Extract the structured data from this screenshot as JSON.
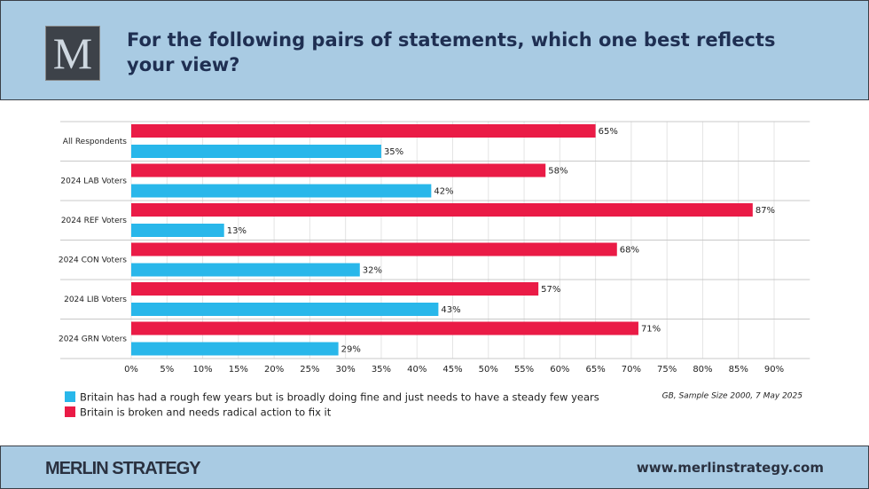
{
  "header": {
    "logo": "M",
    "title": "For the following pairs of statements, which one best reflects your view?"
  },
  "chart_data": {
    "type": "bar",
    "orientation": "horizontal",
    "categories": [
      "All Respondents",
      "2024 LAB Voters",
      "2024 REF Voters",
      "2024 CON Voters",
      "2024 LIB Voters",
      "2024 GRN Voters"
    ],
    "series": [
      {
        "name": "Britain has had a rough few years but is broadly doing fine and just needs to have a steady few years",
        "color": "#29b7ea",
        "values": [
          35,
          42,
          13,
          32,
          43,
          29
        ],
        "value_labels": [
          "35%",
          "42%",
          "13%",
          "32%",
          "43%",
          "29%"
        ]
      },
      {
        "name": "Britain is broken and needs radical action to fix it",
        "color": "#ea1b46",
        "values": [
          65,
          58,
          87,
          68,
          57,
          71
        ],
        "value_labels": [
          "65%",
          "58%",
          "87%",
          "68%",
          "57%",
          "71%"
        ]
      }
    ],
    "xlim": [
      0,
      95
    ],
    "xticks": [
      {
        "value": 0,
        "label": "0%"
      },
      {
        "value": 5,
        "label": "5%"
      },
      {
        "value": 10,
        "label": "10%"
      },
      {
        "value": 15,
        "label": "15%"
      },
      {
        "value": 20,
        "label": "20%"
      },
      {
        "value": 25,
        "label": "25%"
      },
      {
        "value": 30,
        "label": "30%"
      },
      {
        "value": 35,
        "label": "35%"
      },
      {
        "value": 40,
        "label": "40%"
      },
      {
        "value": 45,
        "label": "45%"
      },
      {
        "value": 50,
        "label": "50%"
      },
      {
        "value": 55,
        "label": "55%"
      },
      {
        "value": 60,
        "label": "60%"
      },
      {
        "value": 65,
        "label": "65%"
      },
      {
        "value": 70,
        "label": "70%"
      },
      {
        "value": 75,
        "label": "75%"
      },
      {
        "value": 80,
        "label": "80%"
      },
      {
        "value": 85,
        "label": "85%"
      },
      {
        "value": 90,
        "label": "90%"
      }
    ],
    "grid": true,
    "legend": "bottom-left",
    "note": "GB, Sample Size 2000, 7 May 2025"
  },
  "footer": {
    "brand": "MERLIN STRATEGY",
    "url": "www.merlinstrategy.com"
  }
}
